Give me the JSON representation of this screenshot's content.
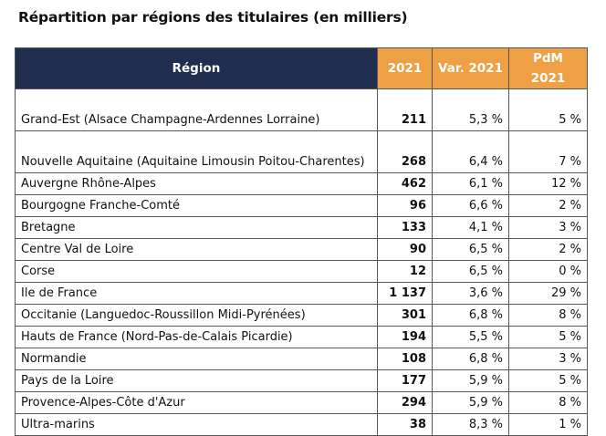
{
  "title": "Répartition par régions des titulaires (en milliers)",
  "header": {
    "region": "Région",
    "year": "2021",
    "var": "Var. 2021",
    "pdm": "PdM 2021"
  },
  "colors": {
    "header_dark": "#1f2d4f",
    "header_orange": "#f0a044"
  },
  "rows": [
    {
      "region": "Grand-Est (Alsace Champagne-Ardennes Lorraine)",
      "value": "211",
      "var": "5,3 %",
      "pdm": "5 %"
    },
    {
      "region": "Nouvelle Aquitaine (Aquitaine Limousin Poitou-Charentes)",
      "value": "268",
      "var": "6,4 %",
      "pdm": "7 %"
    },
    {
      "region": "Auvergne Rhône-Alpes",
      "value": "462",
      "var": "6,1 %",
      "pdm": "12 %"
    },
    {
      "region": "Bourgogne Franche-Comté",
      "value": "96",
      "var": "6,6 %",
      "pdm": "2 %"
    },
    {
      "region": "Bretagne",
      "value": "133",
      "var": "4,1 %",
      "pdm": "3 %"
    },
    {
      "region": "Centre Val de Loire",
      "value": "90",
      "var": "6,5 %",
      "pdm": "2 %"
    },
    {
      "region": "Corse",
      "value": "12",
      "var": "6,5 %",
      "pdm": "0 %"
    },
    {
      "region": "Ile de France",
      "value": "1 137",
      "var": "3,6 %",
      "pdm": "29 %"
    },
    {
      "region": "Occitanie (Languedoc-Roussillon Midi-Pyrénées)",
      "value": "301",
      "var": "6,8 %",
      "pdm": "8 %"
    },
    {
      "region": "Hauts de France (Nord-Pas-de-Calais Picardie)",
      "value": "194",
      "var": "5,5 %",
      "pdm": "5 %"
    },
    {
      "region": "Normandie",
      "value": "108",
      "var": "6,8 %",
      "pdm": "3 %"
    },
    {
      "region": "Pays de la Loire",
      "value": "177",
      "var": "5,9 %",
      "pdm": "5 %"
    },
    {
      "region": "Provence-Alpes-Côte d'Azur",
      "value": "294",
      "var": "5,9 %",
      "pdm": "8 %"
    },
    {
      "region": "Ultra-marins",
      "value": "38",
      "var": "8,3 %",
      "pdm": "1 %"
    }
  ]
}
